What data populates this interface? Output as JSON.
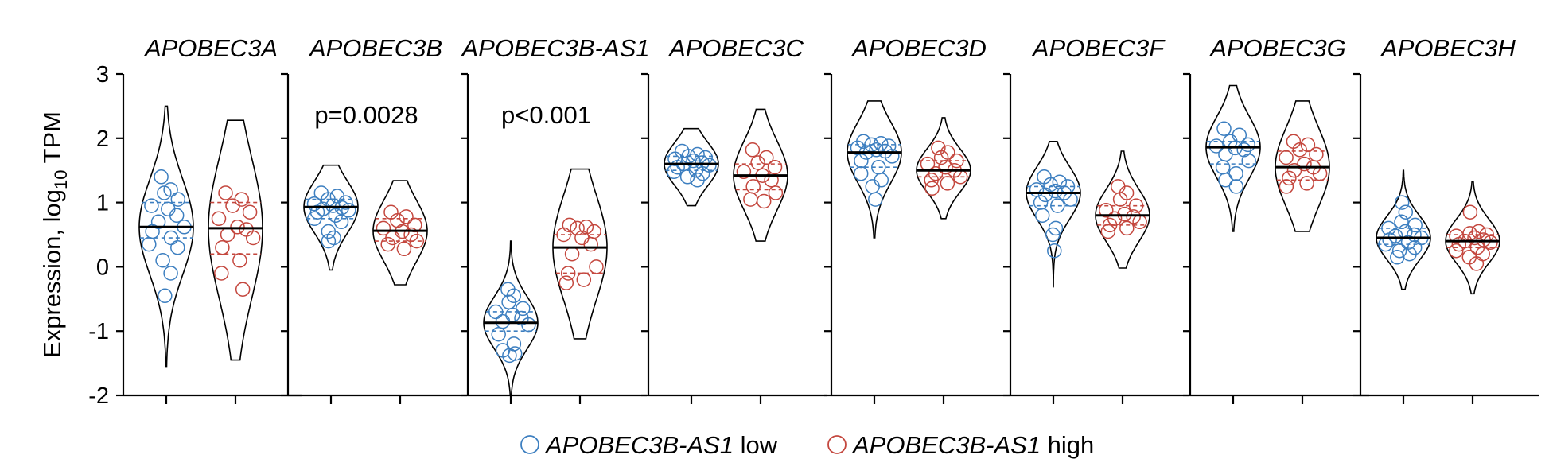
{
  "chart_data": {
    "type": "violin",
    "ylabel_main": "Expression, log",
    "ylabel_sub": "10",
    "ylabel_tail": " TPM",
    "ylim": [
      -2,
      3
    ],
    "yticks": [
      "3",
      "2",
      "1",
      "0",
      "-1",
      "-2"
    ],
    "grid": false,
    "legend_position": "bottom-center",
    "colors": {
      "low": "#3d7fc0",
      "high": "#c4473e",
      "outline": "#000000"
    },
    "legend": [
      {
        "key": "low",
        "gene": "APOBEC3B-AS1",
        "suffix": " low"
      },
      {
        "key": "high",
        "gene": "APOBEC3B-AS1",
        "suffix": " high"
      }
    ],
    "panels": [
      {
        "gene": "APOBEC3A",
        "pvalue": "",
        "groups": [
          {
            "group": "low",
            "min": -1.55,
            "max": 2.5,
            "median": 0.62,
            "q1": 0.45,
            "q3": 1.0,
            "points": [
              1.4,
              1.2,
              1.15,
              1.05,
              0.95,
              0.9,
              0.8,
              0.7,
              0.62,
              0.55,
              0.45,
              0.35,
              0.3,
              0.1,
              -0.1,
              -0.45
            ]
          },
          {
            "group": "high",
            "min": -1.45,
            "max": 2.28,
            "median": 0.6,
            "q1": 0.2,
            "q3": 1.0,
            "points": [
              1.15,
              1.05,
              0.95,
              0.85,
              0.75,
              0.62,
              0.58,
              0.5,
              0.45,
              0.3,
              0.1,
              -0.1,
              -0.35
            ]
          }
        ]
      },
      {
        "gene": "APOBEC3B",
        "pvalue": "p=0.0028",
        "groups": [
          {
            "group": "low",
            "min": -0.05,
            "max": 1.58,
            "median": 0.93,
            "q1": 0.75,
            "q3": 1.05,
            "points": [
              1.15,
              1.1,
              1.05,
              1.0,
              0.98,
              0.95,
              0.92,
              0.9,
              0.88,
              0.85,
              0.8,
              0.75,
              0.7,
              0.55,
              0.45,
              0.4
            ]
          },
          {
            "group": "high",
            "min": -0.28,
            "max": 1.34,
            "median": 0.56,
            "q1": 0.4,
            "q3": 0.75,
            "points": [
              0.85,
              0.78,
              0.72,
              0.65,
              0.6,
              0.55,
              0.5,
              0.45,
              0.4,
              0.35,
              0.28
            ]
          }
        ]
      },
      {
        "gene": "APOBEC3B-AS1",
        "pvalue": "p<0.001",
        "groups": [
          {
            "group": "low",
            "min": -2.0,
            "max": 0.4,
            "median": -0.87,
            "q1": -1.0,
            "q3": -0.7,
            "points": [
              -0.35,
              -0.45,
              -0.55,
              -0.65,
              -0.7,
              -0.75,
              -0.8,
              -0.85,
              -0.9,
              -1.05,
              -1.2,
              -1.3,
              -1.35,
              -1.38
            ]
          },
          {
            "group": "high",
            "min": -1.12,
            "max": 1.52,
            "median": 0.3,
            "q1": -0.1,
            "q3": 0.5,
            "points": [
              0.65,
              0.62,
              0.6,
              0.55,
              0.5,
              0.45,
              0.35,
              0.2,
              0.0,
              -0.1,
              -0.2,
              -0.25
            ]
          }
        ]
      },
      {
        "gene": "APOBEC3C",
        "pvalue": "",
        "groups": [
          {
            "group": "low",
            "min": 0.95,
            "max": 2.15,
            "median": 1.6,
            "q1": 1.5,
            "q3": 1.72,
            "points": [
              1.8,
              1.75,
              1.72,
              1.7,
              1.68,
              1.65,
              1.62,
              1.6,
              1.58,
              1.55,
              1.5,
              1.48,
              1.45,
              1.4,
              1.35
            ]
          },
          {
            "group": "high",
            "min": 0.4,
            "max": 2.45,
            "median": 1.42,
            "q1": 1.2,
            "q3": 1.6,
            "points": [
              1.82,
              1.7,
              1.62,
              1.55,
              1.48,
              1.42,
              1.35,
              1.25,
              1.15,
              1.05,
              1.02
            ]
          }
        ]
      },
      {
        "gene": "APOBEC3D",
        "pvalue": "",
        "groups": [
          {
            "group": "low",
            "min": 0.45,
            "max": 2.58,
            "median": 1.78,
            "q1": 1.55,
            "q3": 1.9,
            "points": [
              1.95,
              1.92,
              1.9,
              1.88,
              1.85,
              1.82,
              1.8,
              1.78,
              1.72,
              1.65,
              1.55,
              1.45,
              1.35,
              1.25,
              1.05
            ]
          },
          {
            "group": "high",
            "min": 0.75,
            "max": 2.32,
            "median": 1.5,
            "q1": 1.4,
            "q3": 1.65,
            "points": [
              1.85,
              1.78,
              1.7,
              1.65,
              1.6,
              1.55,
              1.5,
              1.45,
              1.4,
              1.35,
              1.3,
              1.22
            ]
          }
        ]
      },
      {
        "gene": "APOBEC3F",
        "pvalue": "",
        "groups": [
          {
            "group": "low",
            "min": -0.32,
            "max": 1.95,
            "median": 1.15,
            "q1": 0.95,
            "q3": 1.25,
            "points": [
              1.4,
              1.32,
              1.28,
              1.25,
              1.2,
              1.18,
              1.15,
              1.12,
              1.05,
              1.0,
              0.95,
              0.8,
              0.6,
              0.5,
              0.25
            ]
          },
          {
            "group": "high",
            "min": -0.02,
            "max": 1.8,
            "median": 0.8,
            "q1": 0.65,
            "q3": 0.95,
            "points": [
              1.25,
              1.15,
              1.05,
              0.95,
              0.88,
              0.82,
              0.78,
              0.75,
              0.7,
              0.65,
              0.6,
              0.55
            ]
          }
        ]
      },
      {
        "gene": "APOBEC3G",
        "pvalue": "",
        "groups": [
          {
            "group": "low",
            "min": 0.55,
            "max": 2.82,
            "median": 1.86,
            "q1": 1.6,
            "q3": 1.95,
            "points": [
              2.15,
              2.05,
              1.95,
              1.9,
              1.88,
              1.85,
              1.82,
              1.75,
              1.65,
              1.55,
              1.45,
              1.35,
              1.25
            ]
          },
          {
            "group": "high",
            "min": 0.55,
            "max": 2.58,
            "median": 1.55,
            "q1": 1.35,
            "q3": 1.8,
            "points": [
              1.95,
              1.9,
              1.82,
              1.75,
              1.7,
              1.6,
              1.55,
              1.5,
              1.45,
              1.38,
              1.3,
              1.25
            ]
          }
        ]
      },
      {
        "gene": "APOBEC3H",
        "pvalue": "",
        "groups": [
          {
            "group": "low",
            "min": -0.35,
            "max": 1.5,
            "median": 0.45,
            "q1": 0.35,
            "q3": 0.6,
            "points": [
              1.0,
              0.85,
              0.7,
              0.65,
              0.6,
              0.55,
              0.5,
              0.48,
              0.45,
              0.42,
              0.38,
              0.35,
              0.3,
              0.25,
              0.2,
              0.15
            ]
          },
          {
            "group": "high",
            "min": -0.42,
            "max": 1.32,
            "median": 0.4,
            "q1": 0.3,
            "q3": 0.5,
            "points": [
              0.85,
              0.55,
              0.52,
              0.5,
              0.48,
              0.45,
              0.42,
              0.4,
              0.38,
              0.35,
              0.3,
              0.25,
              0.2,
              0.15,
              0.05
            ]
          }
        ]
      }
    ]
  }
}
